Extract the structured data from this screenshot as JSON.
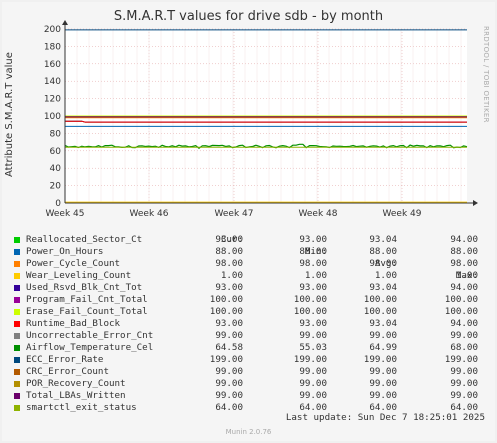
{
  "chart_data": {
    "type": "line",
    "title": "S.M.A.R.T values for drive sdb - by month",
    "ylabel": "Attribute S.M.A.R.T value",
    "xlabel": "",
    "ylim": [
      0,
      200
    ],
    "yticks": [
      0,
      20,
      40,
      60,
      80,
      100,
      120,
      140,
      160,
      180,
      200
    ],
    "xticks": [
      "Week 45",
      "Week 46",
      "Week 47",
      "Week 48",
      "Week 49"
    ],
    "grid": true,
    "legend_columns": [
      "Cur:",
      "Min:",
      "Avg:",
      "Max:"
    ],
    "series": [
      {
        "name": "Reallocated_Sector_Ct",
        "color": "#00cc00",
        "cur": "93.00",
        "min": "93.00",
        "avg": "93.04",
        "max": "94.00",
        "level": 93,
        "early": 94
      },
      {
        "name": "Power_On_Hours",
        "color": "#0066b3",
        "cur": "88.00",
        "min": "88.00",
        "avg": "88.00",
        "max": "88.00",
        "level": 88
      },
      {
        "name": "Power_Cycle_Count",
        "color": "#ff8000",
        "cur": "98.00",
        "min": "98.00",
        "avg": "98.00",
        "max": "98.00",
        "level": 98
      },
      {
        "name": "Wear_Leveling_Count",
        "color": "#ffcc00",
        "cur": "1.00",
        "min": "1.00",
        "avg": "1.00",
        "max": "1.00",
        "level": 1
      },
      {
        "name": "Used_Rsvd_Blk_Cnt_Tot",
        "color": "#330099",
        "cur": "93.00",
        "min": "93.00",
        "avg": "93.04",
        "max": "94.00",
        "level": 93,
        "early": 94
      },
      {
        "name": "Program_Fail_Cnt_Total",
        "color": "#990099",
        "cur": "100.00",
        "min": "100.00",
        "avg": "100.00",
        "max": "100.00",
        "level": 100
      },
      {
        "name": "Erase_Fail_Count_Total",
        "color": "#ccff00",
        "cur": "100.00",
        "min": "100.00",
        "avg": "100.00",
        "max": "100.00",
        "level": 100
      },
      {
        "name": "Runtime_Bad_Block",
        "color": "#ff0000",
        "cur": "93.00",
        "min": "93.00",
        "avg": "93.04",
        "max": "94.00",
        "level": 93,
        "early": 94
      },
      {
        "name": "Uncorrectable_Error_Cnt",
        "color": "#808080",
        "cur": "99.00",
        "min": "99.00",
        "avg": "99.00",
        "max": "99.00",
        "level": 99
      },
      {
        "name": "Airflow_Temperature_Cel",
        "color": "#008f00",
        "cur": "64.58",
        "min": "55.03",
        "avg": "64.99",
        "max": "68.00",
        "level": 65,
        "noisy": true
      },
      {
        "name": "ECC_Error_Rate",
        "color": "#00487d",
        "cur": "199.00",
        "min": "199.00",
        "avg": "199.00",
        "max": "199.00",
        "level": 199
      },
      {
        "name": "CRC_Error_Count",
        "color": "#b35a00",
        "cur": "99.00",
        "min": "99.00",
        "avg": "99.00",
        "max": "99.00",
        "level": 99
      },
      {
        "name": "POR_Recovery_Count",
        "color": "#b38f00",
        "cur": "99.00",
        "min": "99.00",
        "avg": "99.00",
        "max": "99.00",
        "level": 99
      },
      {
        "name": "Total_LBAs_Written",
        "color": "#6b006b",
        "cur": "99.00",
        "min": "99.00",
        "avg": "99.00",
        "max": "99.00",
        "level": 99
      },
      {
        "name": "smartctl_exit_status",
        "color": "#8fb300",
        "cur": "64.00",
        "min": "64.00",
        "avg": "64.00",
        "max": "64.00",
        "level": 64
      }
    ]
  },
  "side_label": "RRDTOOL / TOBI OETIKER",
  "last_update": "Last update: Sun Dec  7 18:25:01 2025",
  "footer": "Munin 2.0.76"
}
